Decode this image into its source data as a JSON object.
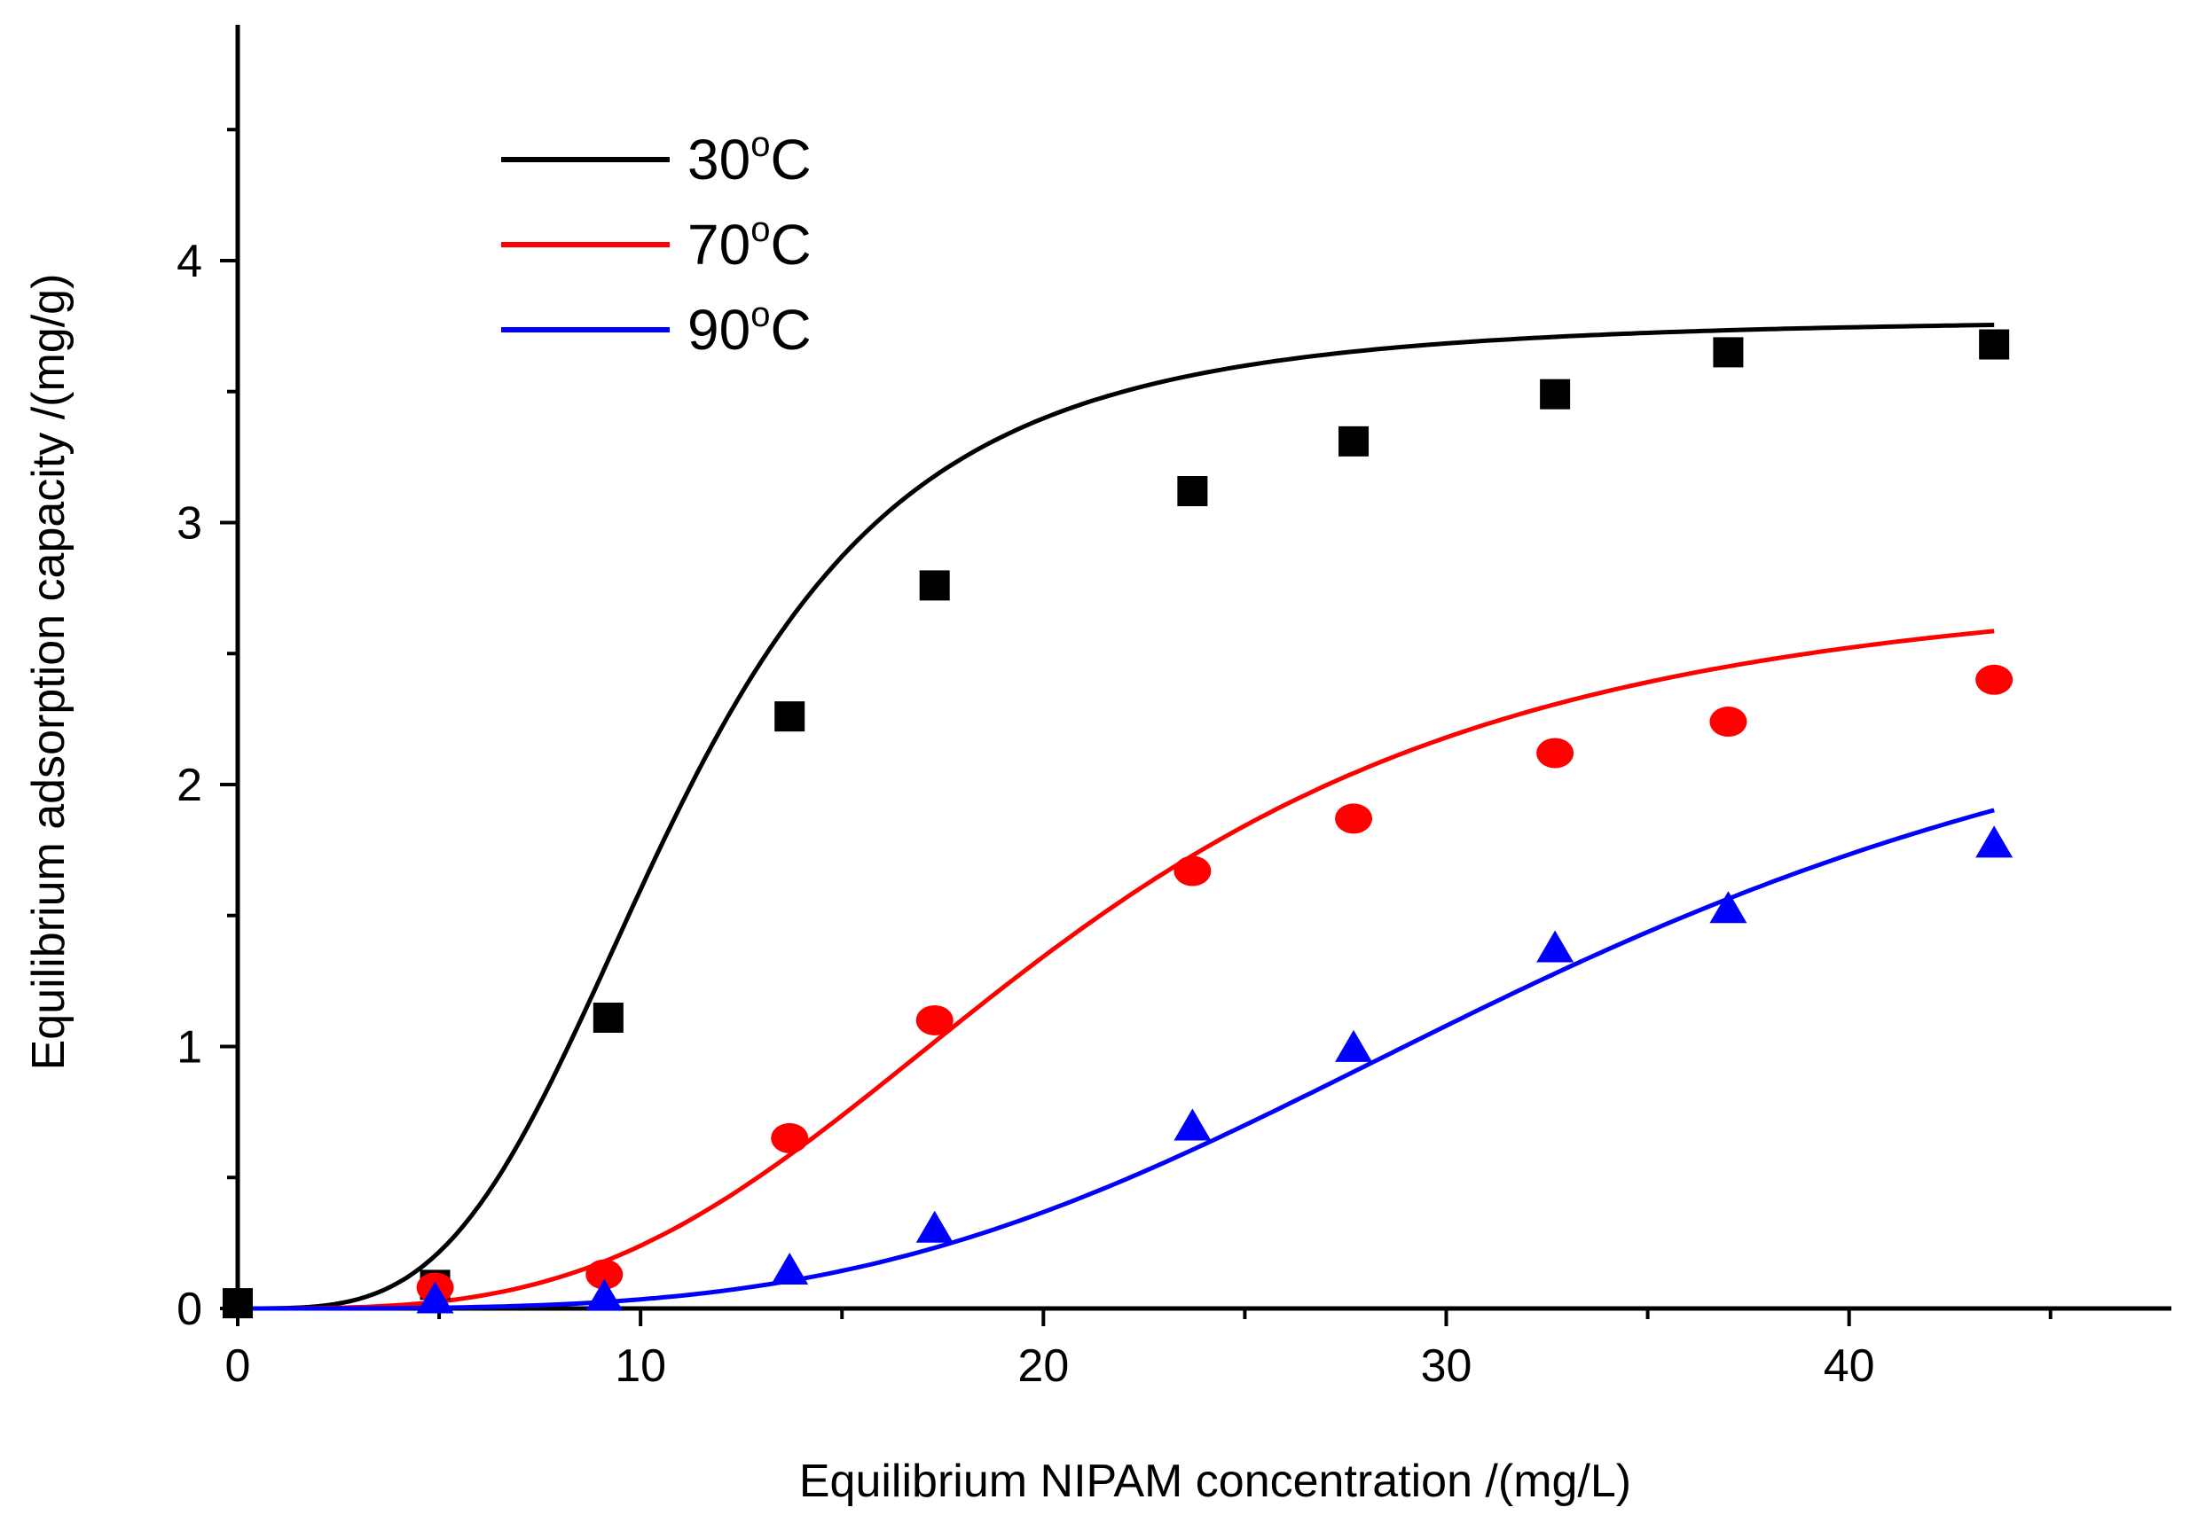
{
  "chart_data": {
    "type": "scatter",
    "title": "",
    "xlabel": "Equilibrium NIPAM concentration /(mg/L)",
    "ylabel": "Equilibrium adsorption capacity /(mg/g)",
    "xlim": [
      0,
      48
    ],
    "ylim": [
      0,
      4.9
    ],
    "x_ticks": [
      "0",
      "10",
      "20",
      "30",
      "40"
    ],
    "y_ticks": [
      "0",
      "1",
      "2",
      "3",
      "4"
    ],
    "legend_position": "top-left",
    "series": [
      {
        "name": "30°C",
        "legend_main": "30",
        "legend_sup": "o",
        "legend_tail": "C",
        "color": "#000000",
        "marker": "square",
        "points": [
          [
            0,
            0.02
          ],
          [
            4.9,
            0.09
          ],
          [
            9.2,
            1.11
          ],
          [
            13.7,
            2.26
          ],
          [
            17.3,
            2.76
          ],
          [
            23.7,
            3.12
          ],
          [
            27.7,
            3.31
          ],
          [
            32.7,
            3.49
          ],
          [
            37.0,
            3.65
          ],
          [
            43.6,
            3.68
          ]
        ],
        "fit": {
          "qmax": 3.78,
          "K": 10.9,
          "n": 3.6
        }
      },
      {
        "name": "70°C",
        "legend_main": "70",
        "legend_sup": "o",
        "legend_tail": "C",
        "color": "#ff0000",
        "marker": "circle",
        "points": [
          [
            4.9,
            0.08
          ],
          [
            9.1,
            0.13
          ],
          [
            13.7,
            0.65
          ],
          [
            17.3,
            1.1
          ],
          [
            23.7,
            1.67
          ],
          [
            27.7,
            1.87
          ],
          [
            32.7,
            2.12
          ],
          [
            37.0,
            2.24
          ],
          [
            43.6,
            2.4
          ]
        ],
        "fit": {
          "qmax": 2.8,
          "K": 20.5,
          "n": 3.3
        }
      },
      {
        "name": "90°C",
        "legend_main": "90",
        "legend_sup": "o",
        "legend_tail": "C",
        "color": "#0000ff",
        "marker": "triangle",
        "points": [
          [
            4.9,
            0.03
          ],
          [
            9.1,
            0.04
          ],
          [
            13.7,
            0.14
          ],
          [
            17.3,
            0.3
          ],
          [
            23.7,
            0.69
          ],
          [
            27.7,
            0.99
          ],
          [
            32.7,
            1.37
          ],
          [
            37.0,
            1.52
          ],
          [
            43.6,
            1.77
          ]
        ],
        "fit": {
          "qmax": 2.6,
          "K": 33.0,
          "n": 3.6
        }
      }
    ]
  }
}
